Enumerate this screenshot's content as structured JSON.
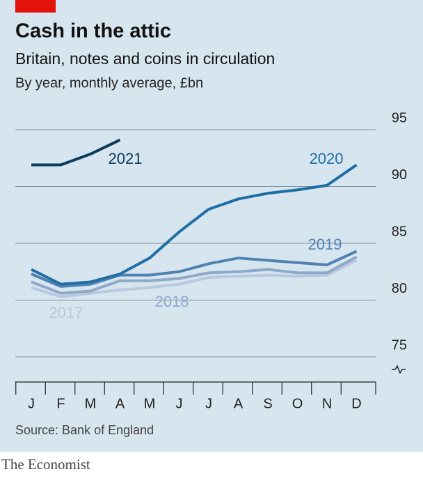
{
  "chart_data": {
    "type": "line",
    "title": "Cash in the attic",
    "subtitle": "Britain, notes and coins in circulation",
    "unit_note": "By year, monthly average, £bn",
    "source": "Source: Bank of England",
    "brand": "The Economist",
    "categories": [
      "J",
      "F",
      "M",
      "A",
      "M",
      "J",
      "J",
      "A",
      "S",
      "O",
      "N",
      "D"
    ],
    "ylim": [
      75,
      95
    ],
    "yticks": [
      75,
      80,
      85,
      90,
      95
    ],
    "grid": true,
    "series": [
      {
        "name": "2017",
        "color": "#b8c9de",
        "values": [
          81.1,
          80.3,
          80.6,
          80.9,
          81.1,
          81.4,
          82.0,
          82.1,
          82.2,
          82.1,
          82.2,
          83.5
        ]
      },
      {
        "name": "2018",
        "color": "#8fa9ca",
        "values": [
          81.6,
          80.6,
          80.8,
          81.7,
          81.7,
          81.9,
          82.4,
          82.5,
          82.7,
          82.4,
          82.4,
          83.8
        ]
      },
      {
        "name": "2019",
        "color": "#4f82b3",
        "values": [
          82.3,
          81.2,
          81.4,
          82.2,
          82.2,
          82.5,
          83.2,
          83.7,
          83.5,
          83.3,
          83.1,
          84.3
        ]
      },
      {
        "name": "2020",
        "color": "#1f6fa5",
        "values": [
          82.7,
          81.4,
          81.6,
          82.3,
          83.7,
          86.0,
          88.0,
          88.9,
          89.4,
          89.7,
          90.1,
          91.9
        ]
      },
      {
        "name": "2021",
        "color": "#0b3c5d",
        "values": [
          91.9,
          91.9,
          92.85,
          94.1,
          null,
          null,
          null,
          null,
          null,
          null,
          null,
          null
        ]
      }
    ]
  }
}
